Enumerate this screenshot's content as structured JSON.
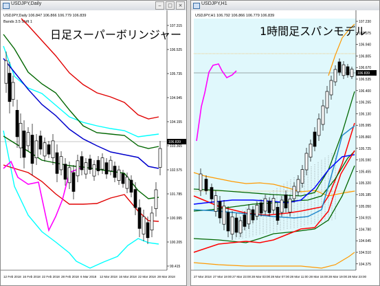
{
  "left_window": {
    "title": "USDJPY,Daily",
    "header": "USDJPY,Daily  106.847 106.866 106.779 106.839",
    "indicator": "Bands 3.5 Shift 1",
    "big_title": "日足スーパーボリンジャー",
    "price_labels": [
      "107.315",
      "106.525",
      "105.735",
      "104.945",
      "104.155",
      "103.365",
      "102.575",
      "101.785",
      "100.995",
      "100.205",
      "99.415"
    ],
    "current_price": "106.839",
    "date_labels": [
      "12 Feb 2018",
      "14 Feb 2018",
      "16 Feb 2018",
      "20 Feb 2018",
      "22 Feb 2018",
      "26 Feb 2018",
      "28 Feb 2018",
      "2 Mar 2018",
      "6 Mar 2018",
      "8 Mar 2018",
      "12 Mar 2018",
      "14 Mar 2018",
      "16 Mar 2018",
      "20 Mar 2018",
      "22 Mar 2018",
      "26 Mar 2018",
      "28 Mar 2018"
    ]
  },
  "right_window": {
    "title": "USDJPY,H1",
    "header": "USDJPY,H1  106.792 106.866 106.779 106.839",
    "big_title": "1時間足スパンモデル",
    "price_labels": [
      "107.230",
      "107.075",
      "106.940",
      "106.805",
      "106.670",
      "106.535",
      "106.400",
      "106.265",
      "106.130",
      "105.995",
      "105.860",
      "105.725",
      "105.590",
      "105.455",
      "105.320",
      "105.185",
      "105.050",
      "104.915",
      "104.780",
      "104.645",
      "104.510",
      "104.375"
    ],
    "current_price": "106.839",
    "date_labels": [
      "27 Mar 2018",
      "27 Mar 19:00",
      "27 Mar 23:00",
      "28 Mar 03:00",
      "28 Mar 07:00",
      "28 Mar 11:00",
      "28 Mar 15:00",
      "28 Mar 19:00",
      "28 Mar 23:00"
    ]
  },
  "colors": {
    "chart_bg_right": "#e0f8fc",
    "band_outer": "#00ffff",
    "band_mid_red": "#e00000",
    "band_green": "#006600",
    "mid_line_blue": "#0000cc",
    "lag_span": "#ff00ff",
    "span_red": "#ff0000",
    "span_blue": "#0000ff",
    "orange": "#ff9900",
    "teal": "#2288cc"
  },
  "window_controls": [
    "minimize",
    "maximize",
    "close"
  ]
}
